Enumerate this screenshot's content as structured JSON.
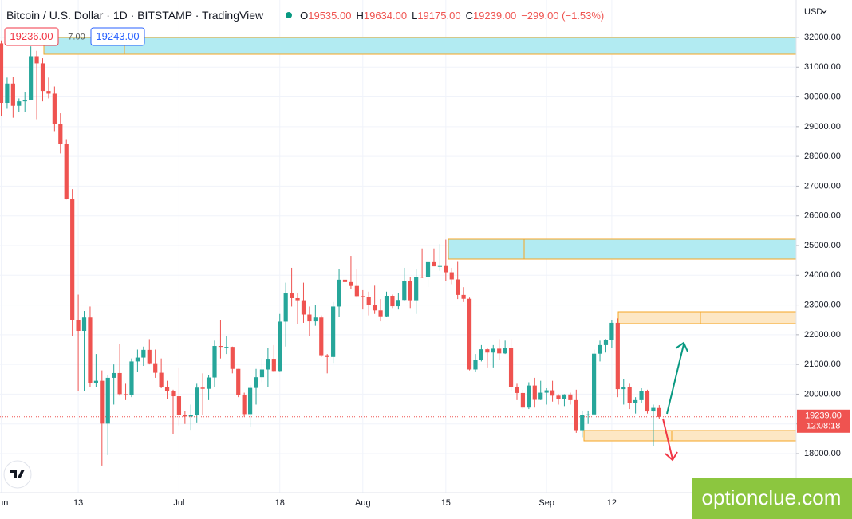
{
  "chart_data": {
    "type": "candlestick",
    "header": {
      "title": "Bitcoin / U.S. Dollar · 1D · BITSTAMP · TradingView",
      "ohlc": [
        {
          "key": "O",
          "value": "19535.00"
        },
        {
          "key": "H",
          "value": "19634.00"
        },
        {
          "key": "L",
          "value": "19175.00"
        },
        {
          "key": "C",
          "value": "19239.00"
        }
      ],
      "change": "−299.00 (−1.53%)"
    },
    "bid": "19236.00",
    "spread": "7.00",
    "ask": "19243.00",
    "currency": "USD",
    "price_label": "19239.00",
    "countdown": "12:08:18",
    "watermark": "optionclue.com",
    "up_color": "#26a69a",
    "down_color": "#ef5350",
    "grid": true,
    "x": [
      0,
      1,
      2,
      3,
      4,
      5,
      6,
      7,
      8,
      9,
      10,
      11,
      12,
      13,
      14,
      15,
      16,
      17,
      18,
      19,
      20,
      21,
      22,
      23,
      24,
      25,
      26,
      27,
      28,
      29,
      30,
      31,
      32,
      33,
      34,
      35,
      36,
      37,
      38,
      39,
      40,
      41,
      42,
      43,
      44,
      45,
      46,
      47,
      48,
      49,
      50,
      51,
      52,
      53,
      54,
      55,
      56,
      57,
      58,
      59,
      60,
      61,
      62,
      63,
      64,
      65,
      66,
      67,
      68,
      69,
      70,
      71,
      72,
      73,
      74,
      75,
      76,
      77,
      78,
      79,
      80,
      81,
      82,
      83,
      84,
      85,
      86,
      87,
      88,
      89,
      90,
      91,
      92,
      93,
      94,
      95,
      96,
      97,
      98,
      99,
      100,
      101,
      102,
      103,
      104,
      105,
      106,
      107,
      108,
      109,
      110,
      111
    ],
    "open": [
      31800,
      29800,
      30450,
      29700,
      29850,
      29900,
      31370,
      31130,
      30200,
      30110,
      29080,
      28420,
      26580,
      22480,
      22130,
      22580,
      20380,
      20450,
      19010,
      20550,
      20710,
      20000,
      19960,
      21100,
      21230,
      21490,
      21040,
      20720,
      20250,
      20100,
      19930,
      19290,
      19250,
      19300,
      20220,
      20180,
      20560,
      21620,
      21590,
      21590,
      20850,
      19960,
      19330,
      20210,
      20570,
      20830,
      21190,
      20780,
      22440,
      23390,
      23230,
      23160,
      22680,
      22450,
      22580,
      21310,
      21250,
      22950,
      23850,
      23770,
      23640,
      23300,
      23270,
      22990,
      22820,
      22620,
      23310,
      22960,
      23170,
      23810,
      23160,
      23950,
      23940,
      24440,
      24300,
      24310,
      24100,
      23860,
      23340,
      23210,
      20830,
      21140,
      21510,
      21400,
      21530,
      21370,
      21560,
      20240,
      20040,
      19550,
      20290,
      19810,
      20050,
      20130,
      19950,
      19830,
      19990,
      19800,
      18790,
      19290,
      19320,
      21360,
      21650,
      21830,
      22400,
      20170,
      20240,
      19700,
      19800,
      20110,
      19420,
      19535
    ],
    "high": [
      31900,
      30650,
      30680,
      29950,
      30150,
      31700,
      31550,
      31300,
      30650,
      30350,
      29450,
      28580,
      26900,
      23350,
      22800,
      22950,
      21350,
      20800,
      20650,
      21000,
      21700,
      20350,
      21200,
      21500,
      21600,
      21850,
      21500,
      21200,
      20450,
      20150,
      20900,
      19430,
      19650,
      20350,
      20700,
      20650,
      21800,
      22500,
      21950,
      21600,
      20850,
      20050,
      20300,
      20850,
      21200,
      21550,
      21650,
      22700,
      23750,
      24250,
      23400,
      23750,
      22950,
      23000,
      22650,
      21350,
      23100,
      24200,
      24450,
      24650,
      24200,
      23500,
      23450,
      23650,
      23200,
      23450,
      23350,
      23400,
      24250,
      23950,
      24200,
      24900,
      24450,
      24900,
      25050,
      25200,
      24250,
      24450,
      23600,
      23250,
      21350,
      21650,
      21550,
      21650,
      21850,
      21800,
      21850,
      20350,
      20150,
      20400,
      20550,
      20450,
      20200,
      20450,
      20000,
      20000,
      20050,
      20150,
      19450,
      19450,
      21500,
      21800,
      21850,
      22500,
      22550,
      20500,
      20350,
      19900,
      20200,
      20150,
      19650,
      19634
    ],
    "low": [
      29350,
      29600,
      29300,
      29500,
      29500,
      29900,
      29250,
      29850,
      29950,
      28850,
      28100,
      26550,
      21950,
      20100,
      20100,
      20250,
      20250,
      17600,
      17950,
      19650,
      19950,
      19800,
      19900,
      20750,
      20950,
      21000,
      20550,
      20200,
      19850,
      18650,
      18950,
      19000,
      18800,
      19050,
      19300,
      19800,
      20250,
      21200,
      21350,
      20700,
      19900,
      19250,
      18900,
      19650,
      20400,
      20250,
      20750,
      20770,
      21600,
      22950,
      22350,
      22400,
      21950,
      22300,
      21250,
      20700,
      21050,
      22600,
      23450,
      23550,
      23250,
      22850,
      22650,
      22700,
      22450,
      22600,
      22900,
      22850,
      23150,
      22900,
      22700,
      23900,
      23600,
      24300,
      24150,
      23800,
      23700,
      23200,
      23100,
      20800,
      20750,
      21100,
      20900,
      20900,
      21150,
      21350,
      20100,
      19800,
      19500,
      19500,
      19550,
      19800,
      19650,
      19750,
      19650,
      19600,
      19650,
      18700,
      18550,
      19000,
      19300,
      21100,
      21400,
      21550,
      19900,
      19650,
      19500,
      19350,
      19700,
      19350,
      18250,
      19175
    ],
    "close": [
      29800,
      30450,
      29700,
      29850,
      29900,
      31370,
      31130,
      30200,
      30110,
      29080,
      28420,
      26580,
      22480,
      22130,
      22580,
      20380,
      20450,
      19010,
      20550,
      20710,
      20000,
      19960,
      21100,
      21230,
      21490,
      21040,
      20720,
      20250,
      20100,
      19930,
      19290,
      19250,
      19300,
      20220,
      20180,
      20560,
      21620,
      21590,
      21590,
      20850,
      19960,
      19330,
      20210,
      20570,
      20830,
      21190,
      20780,
      22440,
      23390,
      23230,
      23160,
      22680,
      22450,
      22580,
      21310,
      21250,
      22950,
      23850,
      23770,
      23640,
      23300,
      23270,
      22990,
      22820,
      22620,
      23310,
      22960,
      23170,
      23810,
      23160,
      23950,
      23940,
      24440,
      24300,
      24310,
      24100,
      23860,
      23340,
      23210,
      20830,
      21140,
      21510,
      21400,
      21530,
      21370,
      21560,
      20240,
      20040,
      19550,
      20290,
      19810,
      20050,
      20130,
      19950,
      19830,
      19990,
      19800,
      18790,
      19290,
      19320,
      21360,
      21650,
      21830,
      22400,
      20170,
      20240,
      19700,
      19800,
      20110,
      19420,
      19540,
      19239
    ],
    "xlim": [
      -0.2,
      134.1
    ],
    "xticks": [
      {
        "value": 0,
        "label": "Jun"
      },
      13,
      {
        "value": 30,
        "label": "Jul"
      },
      {
        "value": 47,
        "label": "18"
      },
      {
        "value": 61,
        "label": "Aug"
      },
      {
        "value": 75,
        "label": "15"
      },
      {
        "value": 92,
        "label": "Sep"
      },
      {
        "value": 103,
        "label": "12"
      }
    ],
    "ylim": [
      16686,
      33260
    ],
    "yticks": [
      {
        "value": 18000,
        "label": "18000.00"
      },
      {
        "value": 19000,
        "label": "19000.00"
      },
      {
        "value": 20000,
        "label": "20000.00"
      },
      {
        "value": 21000,
        "label": "21000.00"
      },
      {
        "value": 22000,
        "label": "22000.00"
      },
      {
        "value": 23000,
        "label": "23000.00"
      },
      {
        "value": 24000,
        "label": "24000.00"
      },
      {
        "value": 25000,
        "label": "25000.00"
      },
      {
        "value": 26000,
        "label": "26000.00"
      },
      {
        "value": 27000,
        "label": "27000.00"
      },
      {
        "value": 28000,
        "label": "28000.00"
      },
      {
        "value": 29000,
        "label": "29000.00"
      },
      {
        "value": 30000,
        "label": "30000.00"
      },
      {
        "value": 31000,
        "label": "31000.00"
      },
      {
        "value": 32000,
        "label": "32000.00"
      }
    ]
  }
}
